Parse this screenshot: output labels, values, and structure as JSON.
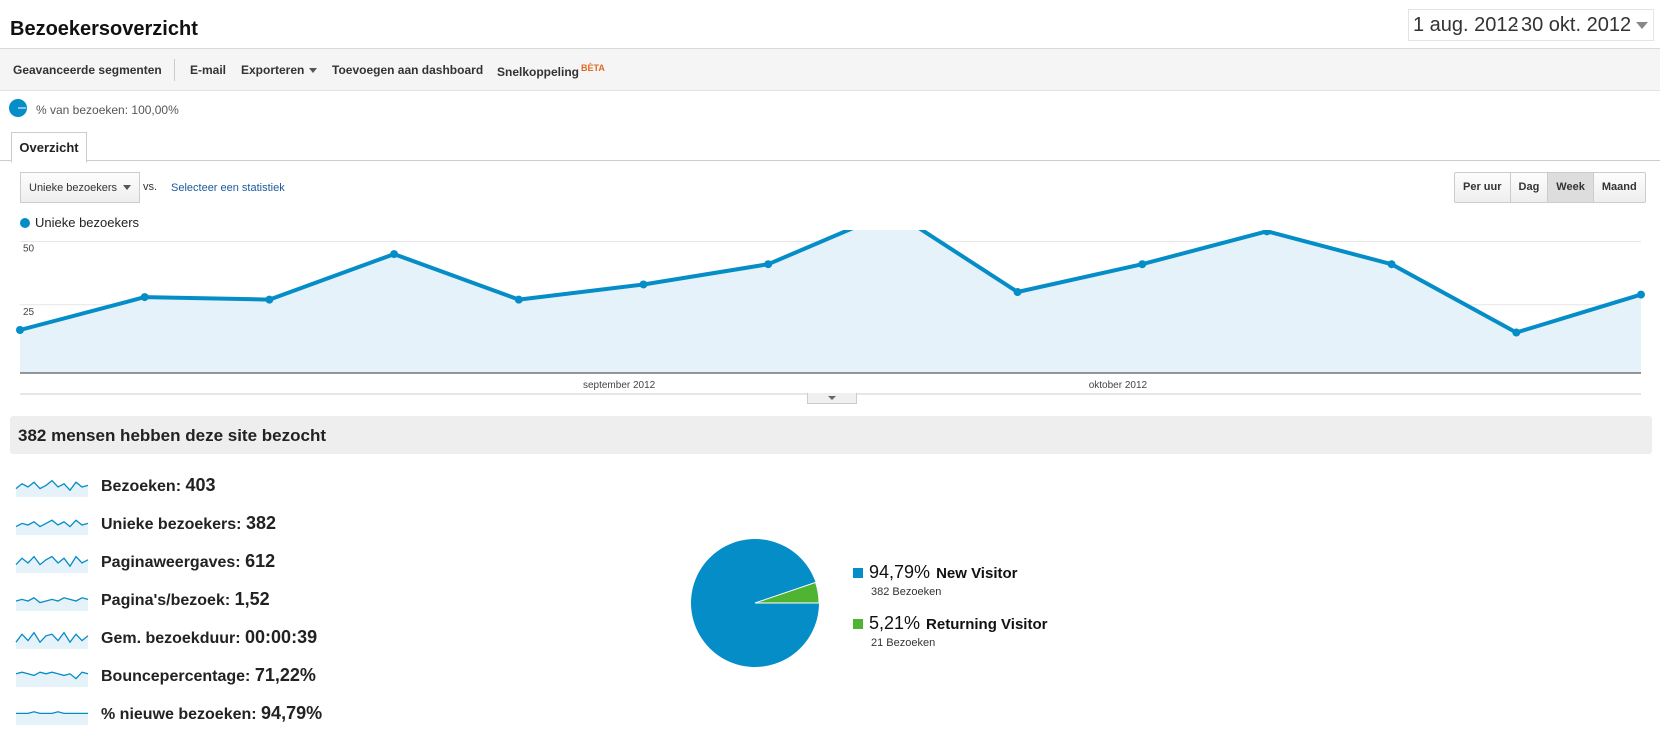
{
  "page": {
    "title": "Bezoekersoverzicht"
  },
  "date_range": {
    "start": "1 aug. 2012",
    "separator": "-",
    "end": "30 okt. 2012"
  },
  "toolbar": {
    "advanced_segments": "Geavanceerde segmenten",
    "email": "E-mail",
    "export": "Exporteren",
    "add_to_dashboard": "Toevoegen aan dashboard",
    "shortcut": "Snelkoppeling",
    "beta": "BÈTA"
  },
  "segment": {
    "label": "% van bezoeken: 100,00%"
  },
  "tabs": [
    {
      "label": "Overzicht"
    }
  ],
  "controls": {
    "metric_select": "Unieke bezoekers",
    "vs": "vs.",
    "select_stat": "Selecteer een statistiek",
    "granularity": [
      {
        "label": "Per uur",
        "active": false
      },
      {
        "label": "Dag",
        "active": false
      },
      {
        "label": "Week",
        "active": true
      },
      {
        "label": "Maand",
        "active": false
      }
    ]
  },
  "chart_data": {
    "type": "area",
    "title": "",
    "series": [
      {
        "name": "Unieke bezoekers",
        "color": "#058dc7",
        "values": [
          17,
          30,
          29,
          47,
          29,
          35,
          43,
          64,
          32,
          43,
          56,
          43,
          16,
          31
        ]
      }
    ],
    "y_ticks": [
      25,
      50
    ],
    "x_labels": [
      "september 2012",
      "oktober 2012"
    ],
    "grid": true
  },
  "summary": {
    "headline": "382 mensen hebben deze site bezocht"
  },
  "stats": [
    {
      "label": "Bezoeken:",
      "value": "403"
    },
    {
      "label": "Unieke bezoekers:",
      "value": "382"
    },
    {
      "label": "Paginaweergaves:",
      "value": "612"
    },
    {
      "label": "Pagina's/bezoek:",
      "value": "1,52"
    },
    {
      "label": "Gem. bezoekduur:",
      "value": "00:00:39"
    },
    {
      "label": "Bouncepercentage:",
      "value": "71,22%"
    },
    {
      "label": "% nieuwe bezoeken:",
      "value": "94,79%"
    }
  ],
  "pie": {
    "slices": [
      {
        "pct": 94.79,
        "color": "#058dc7"
      },
      {
        "pct": 5.21,
        "color": "#50b432"
      }
    ],
    "legend": [
      {
        "pct": "94,79%",
        "label": "New Visitor",
        "sub": "382 Bezoeken",
        "color": "#058dc7"
      },
      {
        "pct": "5,21%",
        "label": "Returning Visitor",
        "sub": "21 Bezoeken",
        "color": "#50b432"
      }
    ]
  }
}
